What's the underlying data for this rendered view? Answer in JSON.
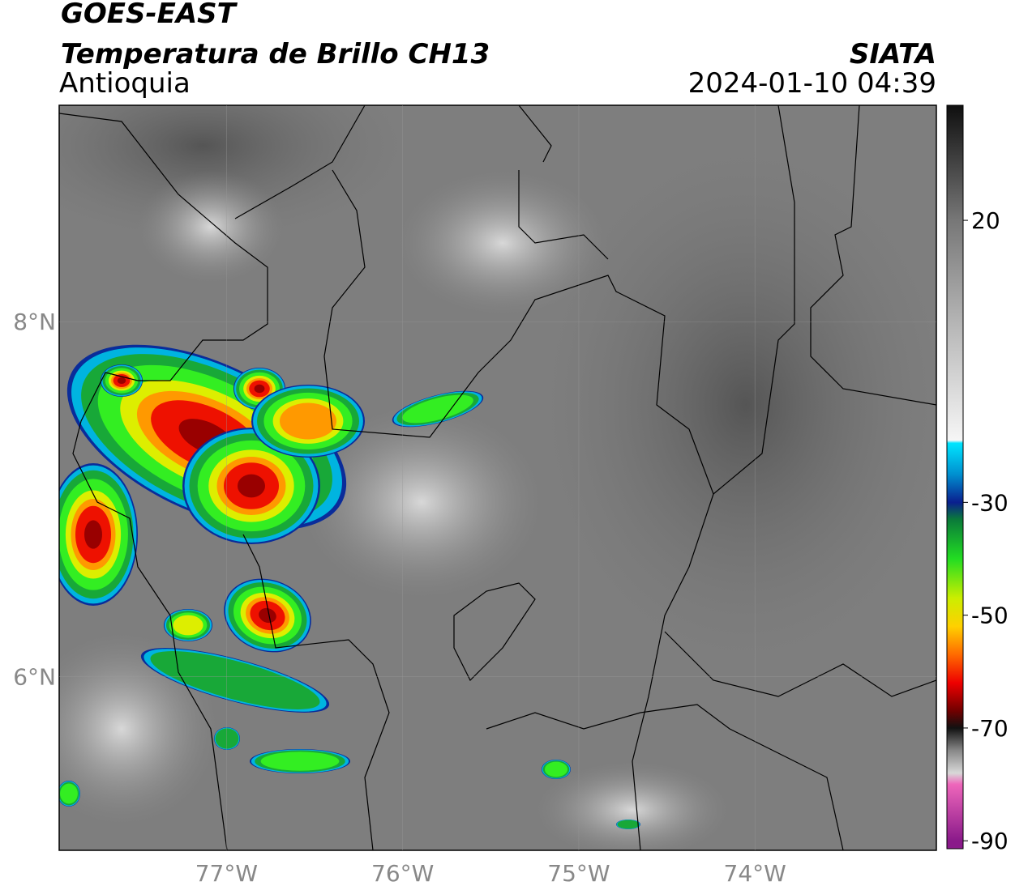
{
  "chart_data": {
    "type": "map",
    "title": "GOES-EAST",
    "subtitle": "Temperatura de Brillo CH13",
    "region": "Antioquia",
    "source": "SIATA",
    "datetime": "2024-01-10 04:39",
    "xlim": [
      -77.95,
      -72.97
    ],
    "ylim": [
      5.02,
      9.22
    ],
    "xticks": [
      {
        "value": -77,
        "label": "77°W"
      },
      {
        "value": -76,
        "label": "76°W"
      },
      {
        "value": -75,
        "label": "75°W"
      },
      {
        "value": -74,
        "label": "74°W"
      }
    ],
    "yticks": [
      {
        "value": 8,
        "label": "8°N"
      },
      {
        "value": 6,
        "label": "6°N"
      }
    ],
    "grid": true,
    "clim": [
      -91.4,
      40.4
    ],
    "cticks": [
      20,
      -30,
      -50,
      -70,
      -90
    ],
    "colormap": [
      [
        40,
        "#111111"
      ],
      [
        30,
        "#444444"
      ],
      [
        20,
        "#777777"
      ],
      [
        0,
        "#bbbbbb"
      ],
      [
        -19,
        "#f6f6f6"
      ],
      [
        -19.5,
        "#00e5ff"
      ],
      [
        -25,
        "#0090d0"
      ],
      [
        -30,
        "#0a1f8f"
      ],
      [
        -33,
        "#0a7a3a"
      ],
      [
        -40,
        "#22dd22"
      ],
      [
        -47,
        "#ccee00"
      ],
      [
        -52,
        "#ffd000"
      ],
      [
        -57,
        "#ff6a00"
      ],
      [
        -62,
        "#ee0000"
      ],
      [
        -67,
        "#700000"
      ],
      [
        -70,
        "#111111"
      ],
      [
        -74,
        "#888888"
      ],
      [
        -78,
        "#d8d8d8"
      ],
      [
        -80,
        "#ee66bb"
      ],
      [
        -90,
        "#8a1a8a"
      ]
    ]
  }
}
